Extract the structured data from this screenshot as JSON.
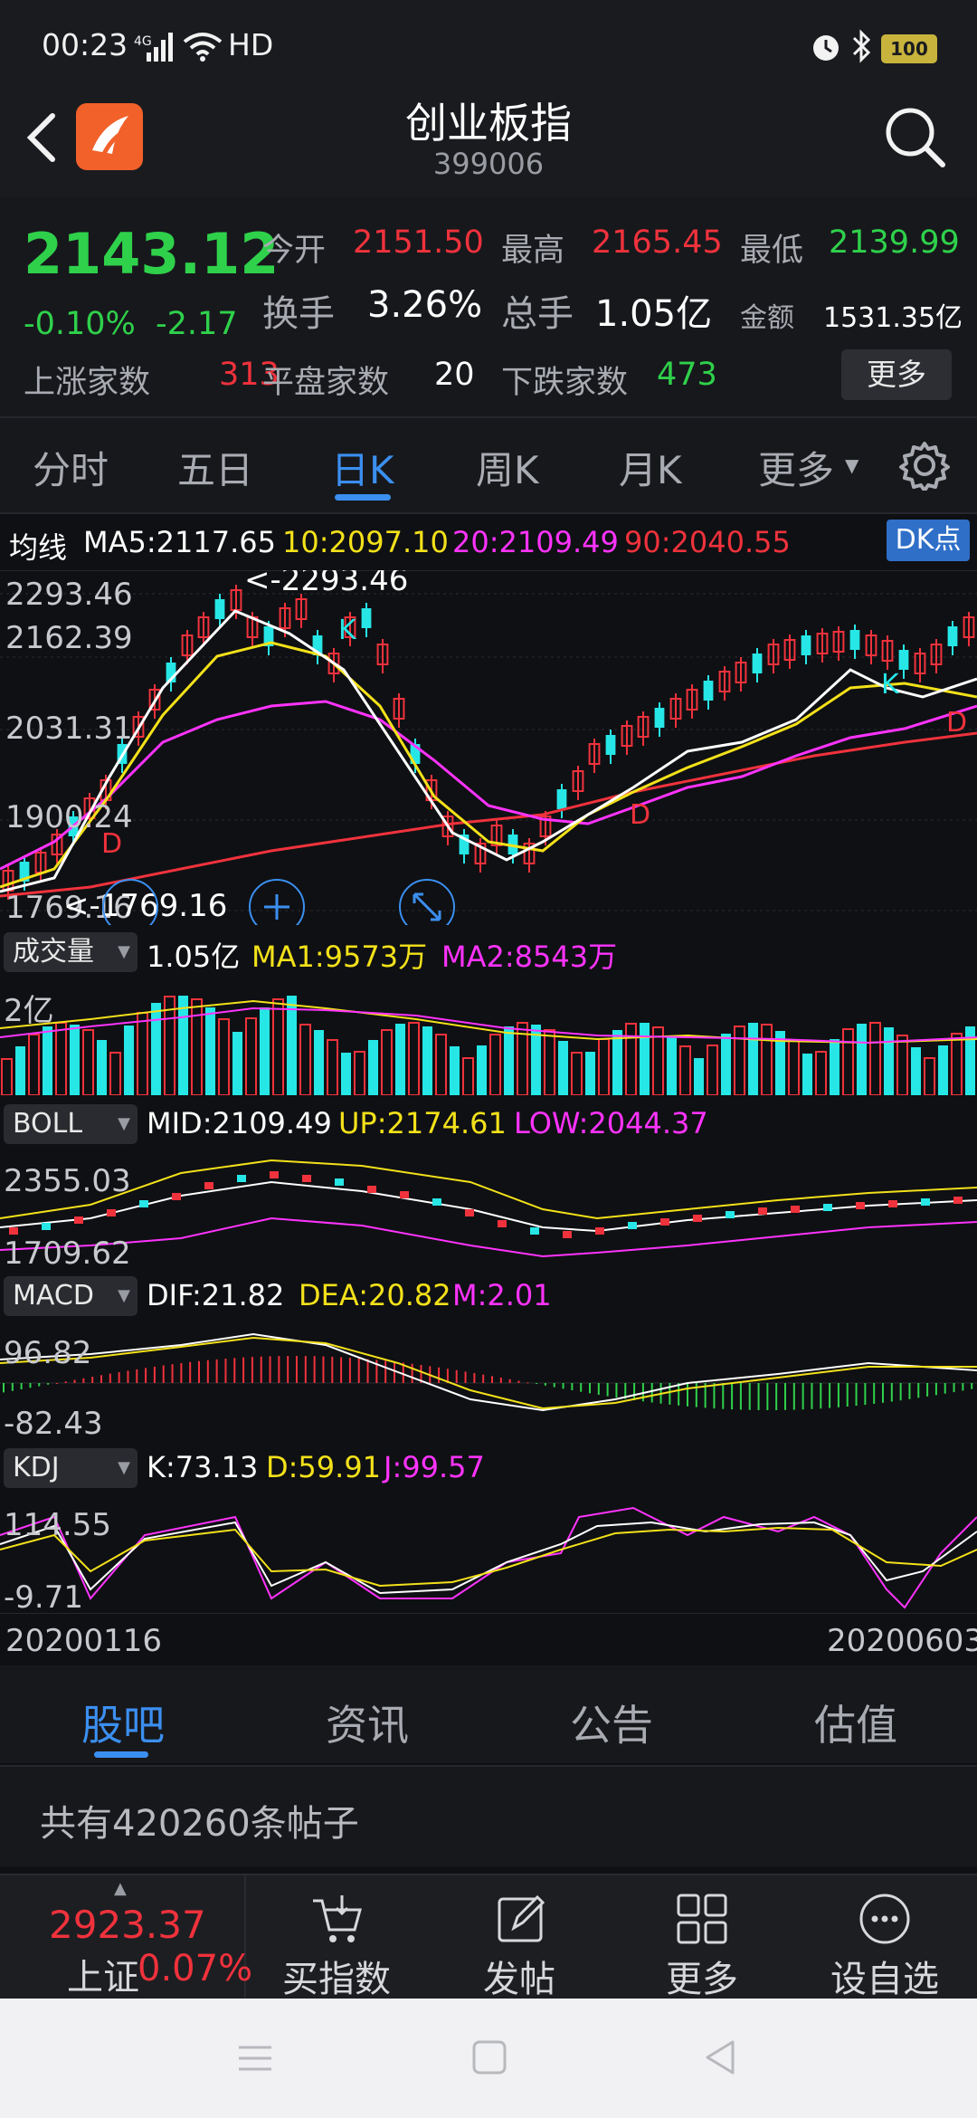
{
  "status": {
    "time": "00:23",
    "network": "4G",
    "wifi_label": "HD",
    "battery": "100"
  },
  "header": {
    "title": "创业板指",
    "code": "399006"
  },
  "quote": {
    "price": "2143.12",
    "change_pct": "-0.10%",
    "change": "-2.17",
    "open_label": "今开",
    "open": "2151.50",
    "high_label": "最高",
    "high": "2165.45",
    "low_label": "最低",
    "low": "2139.99",
    "turnover_label": "换手",
    "turnover": "3.26%",
    "volume_label": "总手",
    "volume": "1.05亿",
    "amount_label": "金额",
    "amount": "1531.35亿",
    "up_label": "上涨家数",
    "up": "313",
    "flat_label": "平盘家数",
    "flat": "20",
    "down_label": "下跌家数",
    "down": "473",
    "more_button": "更多"
  },
  "tabs": [
    "分时",
    "五日",
    "日K",
    "周K",
    "月K",
    "更多"
  ],
  "ma_legend": {
    "label": "均线",
    "ma5": "MA5:2117.65",
    "ma10": "10:2097.10",
    "ma20": "20:2109.49",
    "ma90": "90:2040.55",
    "dk": "DK点"
  },
  "kline_axis": {
    "top": "2293.46",
    "mid1": "2162.39",
    "mid2": "2031.31",
    "low1": "1900.24",
    "bottom": "1769.16",
    "max_mark": "<-2293.46",
    "min_mark": "<-1769.16"
  },
  "volume_panel": {
    "selector": "成交量",
    "value": "1.05亿",
    "ma1": "MA1:9573万",
    "ma2": "MA2:8543万",
    "axis": "2亿"
  },
  "boll_panel": {
    "selector": "BOLL",
    "mid": "MID:2109.49",
    "up": "UP:2174.61",
    "low": "LOW:2044.37",
    "axis_top": "2355.03",
    "axis_bottom": "1709.62"
  },
  "macd_panel": {
    "selector": "MACD",
    "dif": "DIF:21.82",
    "dea": "DEA:20.82",
    "m": "M:2.01",
    "axis_top": "96.82",
    "axis_bottom": "-82.43"
  },
  "kdj_panel": {
    "selector": "KDJ",
    "k": "K:73.13",
    "d": "D:59.91",
    "j": "J:99.57",
    "axis_top": "114.55",
    "axis_bottom": "-9.71"
  },
  "dates": {
    "start": "20200116",
    "end": "20200603"
  },
  "bottom_tabs": [
    "股吧",
    "资讯",
    "公告",
    "估值"
  ],
  "posts_text": "共有420260条帖子",
  "bottom_bar": {
    "index_price": "2923.37",
    "index_name": "上证",
    "index_pct": "0.07%",
    "buy_index": "买指数",
    "post": "发帖",
    "more": "更多",
    "add_fav": "设自选"
  },
  "colors": {
    "up": "#f0323c",
    "down": "#2fd14b",
    "accent": "#3b8ff0",
    "candle_down": "#27e6e6"
  }
}
